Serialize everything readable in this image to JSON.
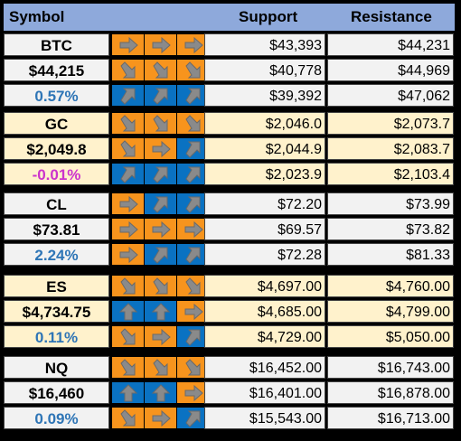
{
  "header": {
    "symbol": "Symbol",
    "support": "Support",
    "resistance": "Resistance"
  },
  "colors": {
    "header_bg": "#8ea9db",
    "light_bg": "#f2f2f2",
    "cream_bg": "#fff2cc",
    "orange": "#f7941d",
    "blue": "#0a72c2",
    "pct_pos": "#2e75b6",
    "pct_neg": "#cc33cc"
  },
  "blocks": [
    {
      "rows": [
        {
          "label": "BTC",
          "arrows": [
            "right",
            "right",
            "right"
          ],
          "support": "$43,393",
          "resistance": "$44,231"
        },
        {
          "label": "$44,215",
          "arrows": [
            "down-right",
            "down-right",
            "down-right"
          ],
          "support": "$40,778",
          "resistance": "$44,969"
        },
        {
          "label": "0.57%",
          "arrows": [
            "up-right",
            "up-right",
            "up-right"
          ],
          "support": "$39,392",
          "resistance": "$47,062"
        }
      ]
    },
    {
      "rows": [
        {
          "label": "GC",
          "arrows": [
            "down-right",
            "down-right",
            "down-right"
          ],
          "support": "$2,046.0",
          "resistance": "$2,073.7"
        },
        {
          "label": "$2,049.8",
          "arrows": [
            "down-right",
            "right",
            "up-right"
          ],
          "support": "$2,044.9",
          "resistance": "$2,083.7"
        },
        {
          "label": "-0.01%",
          "arrows": [
            "up-right",
            "up-right",
            "up-right"
          ],
          "support": "$2,023.9",
          "resistance": "$2,103.4"
        }
      ]
    },
    {
      "rows": [
        {
          "label": "CL",
          "arrows": [
            "right",
            "up-right",
            "up-right"
          ],
          "support": "$72.20",
          "resistance": "$73.99"
        },
        {
          "label": "$73.81",
          "arrows": [
            "right",
            "right",
            "right"
          ],
          "support": "$69.57",
          "resistance": "$73.82"
        },
        {
          "label": "2.24%",
          "arrows": [
            "right",
            "up-right",
            "up-right"
          ],
          "support": "$72.28",
          "resistance": "$81.33"
        }
      ]
    },
    {
      "rows": [
        {
          "label": "ES",
          "arrows": [
            "down-right",
            "down-right",
            "down-right"
          ],
          "support": "$4,697.00",
          "resistance": "$4,760.00"
        },
        {
          "label": "$4,734.75",
          "arrows": [
            "up",
            "up",
            "right"
          ],
          "support": "$4,685.00",
          "resistance": "$4,799.00"
        },
        {
          "label": "0.11%",
          "arrows": [
            "down-right",
            "right",
            "up-right"
          ],
          "support": "$4,729.00",
          "resistance": "$5,050.00"
        }
      ]
    },
    {
      "rows": [
        {
          "label": "NQ",
          "arrows": [
            "down-right",
            "down-right",
            "down-right"
          ],
          "support": "$16,452.00",
          "resistance": "$16,743.00"
        },
        {
          "label": "$16,460",
          "arrows": [
            "up",
            "up",
            "right"
          ],
          "support": "$16,401.00",
          "resistance": "$16,878.00"
        },
        {
          "label": "0.09%",
          "arrows": [
            "down-right",
            "right",
            "up-right"
          ],
          "support": "$15,543.00",
          "resistance": "$16,713.00"
        }
      ]
    }
  ]
}
